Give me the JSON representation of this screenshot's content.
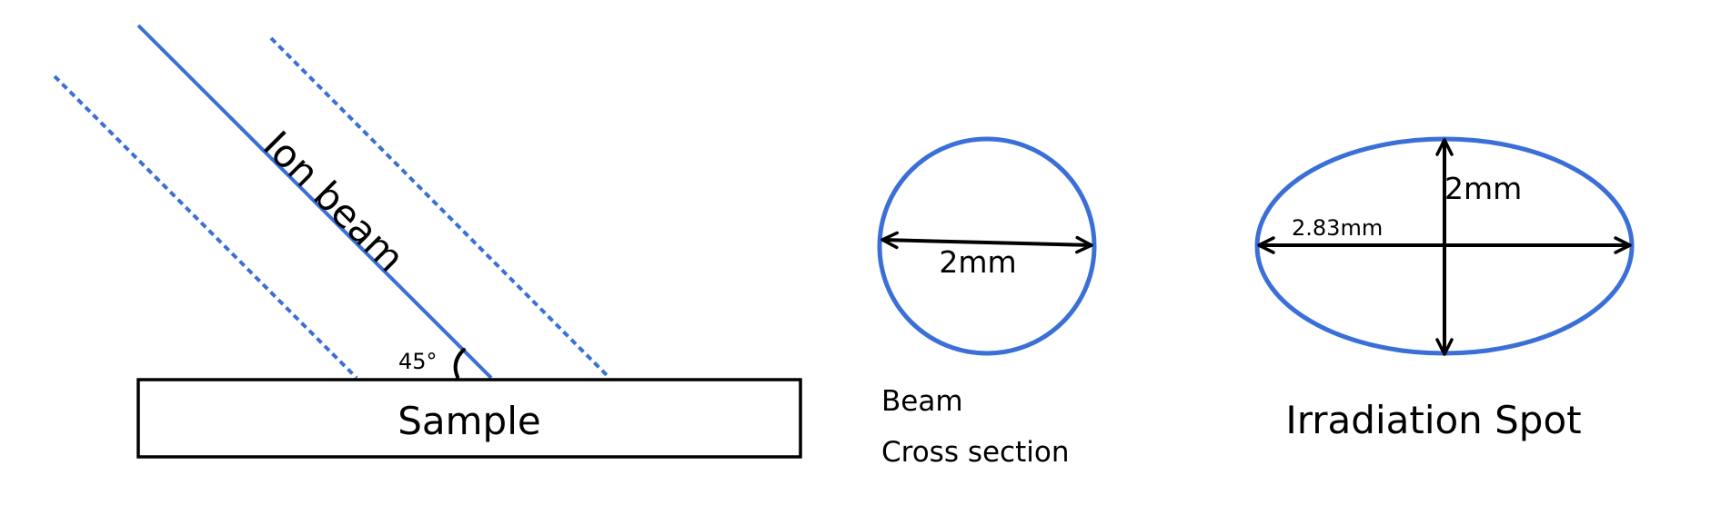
{
  "colors": {
    "beam": "#3B6FD8",
    "outline": "#000000",
    "background": "#FFFFFF"
  },
  "labels": {
    "ion_beam": "Ion beam",
    "angle": "45°",
    "sample": "Sample",
    "beam_line1": "Beam",
    "beam_line2": "Cross section",
    "circle_diameter": "2mm",
    "spot_major": "2.83mm",
    "spot_minor": "2mm",
    "irradiation_spot": "Irradiation Spot"
  }
}
